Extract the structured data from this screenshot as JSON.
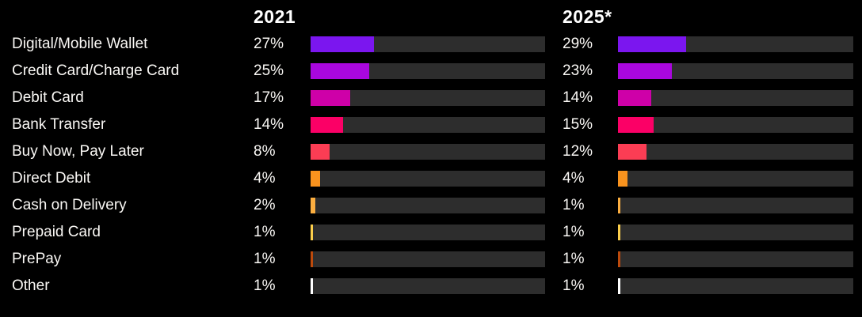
{
  "chart_data": {
    "type": "bar",
    "orientation": "horizontal",
    "title": "",
    "columns": {
      "col1_label": "2021",
      "col2_label": "2025*"
    },
    "categories": [
      "Digital/Mobile Wallet",
      "Credit Card/Charge Card",
      "Debit Card",
      "Bank Transfer",
      "Buy Now, Pay Later",
      "Direct Debit",
      "Cash on Delivery",
      "Prepaid Card",
      "PrePay",
      "Other"
    ],
    "series": [
      {
        "name": "2021",
        "values": [
          27,
          25,
          17,
          14,
          8,
          4,
          2,
          1,
          1,
          1
        ]
      },
      {
        "name": "2025*",
        "values": [
          29,
          23,
          14,
          15,
          12,
          4,
          1,
          1,
          1,
          1
        ]
      }
    ],
    "value_format": "percent",
    "xlim": [
      0,
      100
    ],
    "grid": false,
    "legend_position": "top-as-column-headers",
    "row_colors": [
      "#7b16ef",
      "#a907de",
      "#ce00a8",
      "#fb0066",
      "#fb3d54",
      "#f9931e",
      "#fbae40",
      "#fbce4b",
      "#bc4a0c",
      "#ffffff"
    ],
    "track_color": "#2d2d2d",
    "background_color": "#000000",
    "text_color": "#faf8f5"
  }
}
